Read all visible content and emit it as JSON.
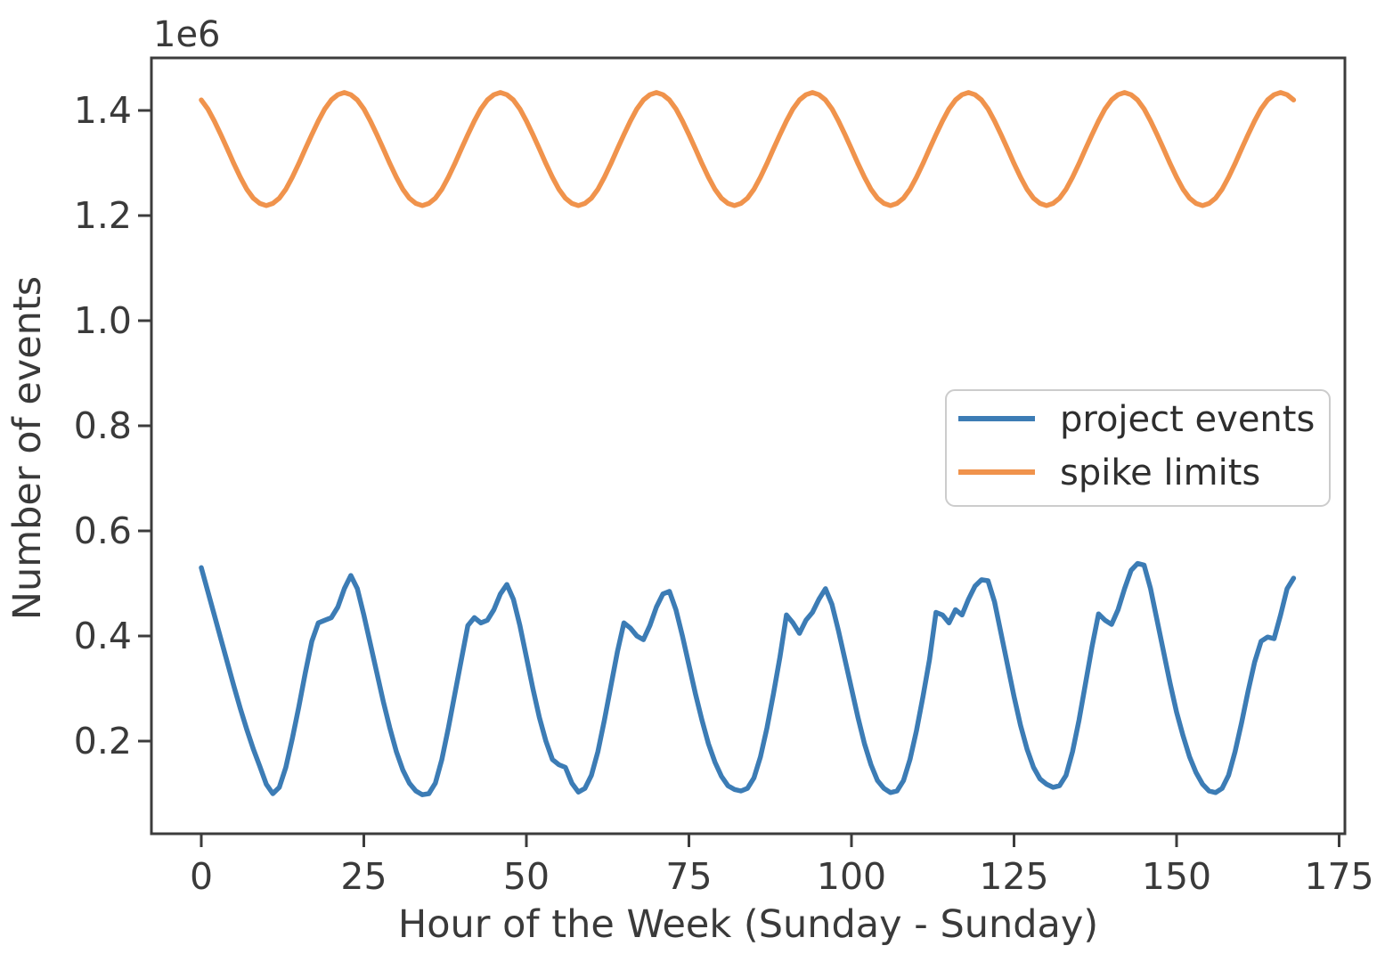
{
  "figure": {
    "offset_label": "1e6",
    "xlabel": "Hour of the Week (Sunday - Sunday)",
    "ylabel": "Number of events"
  },
  "chart_data": {
    "type": "line",
    "title": "",
    "xlabel": "Hour of the Week (Sunday - Sunday)",
    "ylabel": "Number of events",
    "y_axis_offset_text": "1e6",
    "y_unit": "events, values in millions (1e6)",
    "x_start": 0,
    "x_step": 1,
    "x_ticks": [
      0,
      25,
      50,
      75,
      100,
      125,
      150,
      175
    ],
    "y_ticks_1e6": [
      0.2,
      0.4,
      0.6,
      0.8,
      1.0,
      1.2,
      1.4
    ],
    "xlim": [
      -7.7,
      176
    ],
    "ylim_1e6": [
      0.02,
      1.5
    ],
    "grid": false,
    "legend_position": "center right",
    "series": [
      {
        "name": "project events",
        "color": "#3c7cb5",
        "values_1e6": [
          0.53,
          0.485,
          0.44,
          0.395,
          0.35,
          0.305,
          0.262,
          0.222,
          0.185,
          0.152,
          0.118,
          0.1,
          0.112,
          0.15,
          0.205,
          0.265,
          0.33,
          0.39,
          0.425,
          0.43,
          0.435,
          0.455,
          0.49,
          0.515,
          0.49,
          0.44,
          0.385,
          0.33,
          0.275,
          0.225,
          0.18,
          0.145,
          0.12,
          0.105,
          0.098,
          0.1,
          0.12,
          0.165,
          0.225,
          0.29,
          0.355,
          0.42,
          0.435,
          0.425,
          0.43,
          0.45,
          0.48,
          0.498,
          0.47,
          0.42,
          0.36,
          0.3,
          0.245,
          0.2,
          0.165,
          0.155,
          0.15,
          0.12,
          0.103,
          0.11,
          0.135,
          0.18,
          0.24,
          0.305,
          0.37,
          0.425,
          0.415,
          0.4,
          0.393,
          0.42,
          0.455,
          0.48,
          0.485,
          0.45,
          0.4,
          0.345,
          0.29,
          0.24,
          0.195,
          0.16,
          0.133,
          0.115,
          0.108,
          0.105,
          0.11,
          0.13,
          0.17,
          0.225,
          0.29,
          0.36,
          0.44,
          0.425,
          0.405,
          0.43,
          0.445,
          0.47,
          0.49,
          0.46,
          0.41,
          0.355,
          0.3,
          0.245,
          0.195,
          0.155,
          0.125,
          0.11,
          0.102,
          0.105,
          0.125,
          0.165,
          0.22,
          0.285,
          0.355,
          0.445,
          0.44,
          0.425,
          0.45,
          0.44,
          0.47,
          0.495,
          0.507,
          0.505,
          0.465,
          0.405,
          0.345,
          0.285,
          0.23,
          0.185,
          0.15,
          0.128,
          0.118,
          0.112,
          0.115,
          0.135,
          0.18,
          0.24,
          0.31,
          0.38,
          0.442,
          0.43,
          0.422,
          0.45,
          0.49,
          0.525,
          0.538,
          0.535,
          0.49,
          0.43,
          0.37,
          0.31,
          0.255,
          0.21,
          0.17,
          0.14,
          0.118,
          0.105,
          0.102,
          0.11,
          0.135,
          0.18,
          0.235,
          0.295,
          0.35,
          0.39,
          0.398,
          0.395,
          0.44,
          0.49,
          0.51
        ]
      },
      {
        "name": "spike limits",
        "color": "#f0934c",
        "values_1e6": [
          1.42,
          1.403,
          1.38,
          1.354,
          1.327,
          1.299,
          1.273,
          1.25,
          1.233,
          1.223,
          1.219,
          1.223,
          1.233,
          1.25,
          1.273,
          1.299,
          1.327,
          1.354,
          1.38,
          1.403,
          1.42,
          1.43,
          1.434,
          1.43,
          1.42,
          1.403,
          1.38,
          1.354,
          1.327,
          1.299,
          1.273,
          1.25,
          1.233,
          1.223,
          1.219,
          1.223,
          1.233,
          1.25,
          1.273,
          1.299,
          1.327,
          1.354,
          1.38,
          1.403,
          1.42,
          1.43,
          1.434,
          1.43,
          1.42,
          1.403,
          1.38,
          1.354,
          1.327,
          1.299,
          1.273,
          1.25,
          1.233,
          1.223,
          1.219,
          1.223,
          1.233,
          1.25,
          1.273,
          1.299,
          1.327,
          1.354,
          1.38,
          1.403,
          1.42,
          1.43,
          1.434,
          1.43,
          1.42,
          1.403,
          1.38,
          1.354,
          1.327,
          1.299,
          1.273,
          1.25,
          1.233,
          1.223,
          1.219,
          1.223,
          1.233,
          1.25,
          1.273,
          1.299,
          1.327,
          1.354,
          1.38,
          1.403,
          1.42,
          1.43,
          1.434,
          1.43,
          1.42,
          1.403,
          1.38,
          1.354,
          1.327,
          1.299,
          1.273,
          1.25,
          1.233,
          1.223,
          1.219,
          1.223,
          1.233,
          1.25,
          1.273,
          1.299,
          1.327,
          1.354,
          1.38,
          1.403,
          1.42,
          1.43,
          1.434,
          1.43,
          1.42,
          1.403,
          1.38,
          1.354,
          1.327,
          1.299,
          1.273,
          1.25,
          1.233,
          1.223,
          1.219,
          1.223,
          1.233,
          1.25,
          1.273,
          1.299,
          1.327,
          1.354,
          1.38,
          1.403,
          1.42,
          1.43,
          1.434,
          1.43,
          1.42,
          1.403,
          1.38,
          1.354,
          1.327,
          1.299,
          1.273,
          1.25,
          1.233,
          1.223,
          1.219,
          1.223,
          1.233,
          1.25,
          1.273,
          1.299,
          1.327,
          1.354,
          1.38,
          1.403,
          1.42,
          1.43,
          1.434,
          1.43,
          1.42
        ]
      }
    ]
  }
}
